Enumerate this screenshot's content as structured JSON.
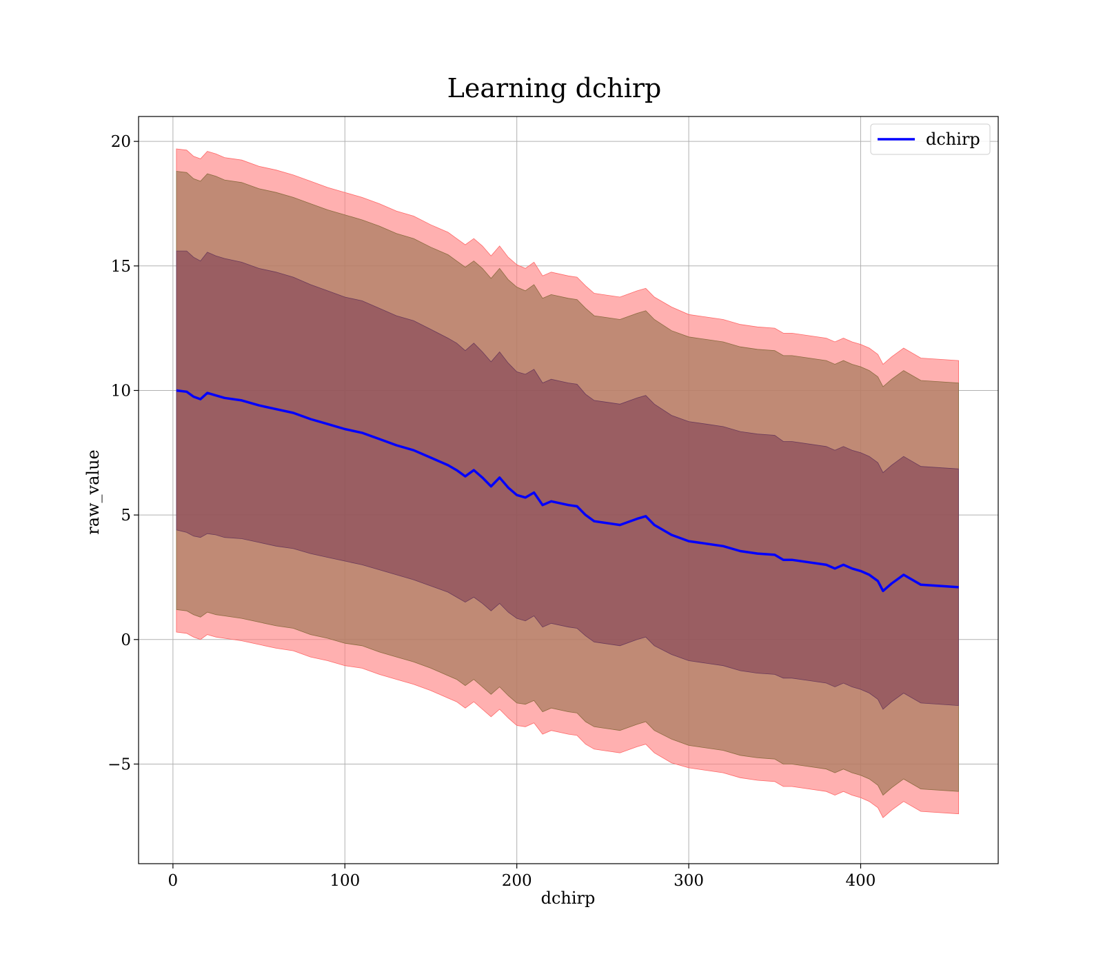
{
  "chart_data": {
    "type": "line",
    "title": "Learning dchirp",
    "xlabel": "dchirp",
    "ylabel": "raw_value",
    "xlim": [
      -20,
      480
    ],
    "ylim": [
      -9,
      21
    ],
    "xticks": [
      0,
      100,
      200,
      300,
      400
    ],
    "yticks": [
      -5,
      0,
      5,
      10,
      15,
      20
    ],
    "xtick_labels": [
      "0",
      "100",
      "200",
      "300",
      "400"
    ],
    "ytick_labels": [
      "−5",
      "0",
      "5",
      "10",
      "15",
      "20"
    ],
    "grid": true,
    "legend": {
      "position": "top-right",
      "entries": [
        "dchirp"
      ]
    },
    "colors": {
      "line": "#0000ff",
      "band_outer": "#ff8080",
      "band_middle": "#a87b5e",
      "band_inner": "#7a3a52"
    },
    "series": [
      {
        "name": "dchirp",
        "x": [
          2,
          8,
          12,
          16,
          20,
          25,
          30,
          40,
          50,
          60,
          70,
          80,
          90,
          100,
          110,
          120,
          130,
          140,
          150,
          160,
          165,
          170,
          175,
          180,
          185,
          190,
          195,
          200,
          205,
          210,
          215,
          220,
          230,
          235,
          240,
          245,
          250,
          260,
          270,
          275,
          280,
          290,
          300,
          310,
          320,
          330,
          340,
          350,
          355,
          360,
          370,
          380,
          385,
          390,
          395,
          400,
          405,
          410,
          413,
          418,
          425,
          435,
          457
        ],
        "y": [
          10.0,
          9.95,
          9.75,
          9.65,
          9.9,
          9.8,
          9.7,
          9.6,
          9.4,
          9.25,
          9.1,
          8.85,
          8.65,
          8.45,
          8.3,
          8.05,
          7.8,
          7.6,
          7.3,
          7.0,
          6.8,
          6.55,
          6.8,
          6.5,
          6.15,
          6.5,
          6.1,
          5.8,
          5.7,
          5.9,
          5.4,
          5.55,
          5.4,
          5.35,
          5.0,
          4.75,
          4.7,
          4.6,
          4.85,
          4.95,
          4.6,
          4.2,
          3.95,
          3.85,
          3.75,
          3.55,
          3.45,
          3.4,
          3.2,
          3.2,
          3.1,
          3.0,
          2.85,
          3.0,
          2.85,
          2.75,
          2.6,
          2.35,
          1.95,
          2.25,
          2.6,
          2.2,
          2.1
        ],
        "band_inner": [
          5.6,
          5.65,
          5.6,
          5.55,
          5.65,
          5.6,
          5.6,
          5.55,
          5.5,
          5.5,
          5.45,
          5.4,
          5.35,
          5.3,
          5.3,
          5.25,
          5.2,
          5.2,
          5.15,
          5.1,
          5.1,
          5.05,
          5.1,
          5.05,
          5.0,
          5.05,
          5.0,
          4.95,
          4.95,
          4.95,
          4.9,
          4.9,
          4.9,
          4.9,
          4.85,
          4.85,
          4.85,
          4.85,
          4.85,
          4.85,
          4.85,
          4.8,
          4.8,
          4.8,
          4.8,
          4.8,
          4.8,
          4.8,
          4.75,
          4.75,
          4.75,
          4.75,
          4.75,
          4.75,
          4.75,
          4.75,
          4.75,
          4.75,
          4.75,
          4.75,
          4.75,
          4.75,
          4.75
        ],
        "band_middle": [
          8.8,
          8.8,
          8.75,
          8.75,
          8.8,
          8.8,
          8.75,
          8.75,
          8.7,
          8.7,
          8.65,
          8.65,
          8.6,
          8.6,
          8.55,
          8.55,
          8.5,
          8.5,
          8.45,
          8.45,
          8.4,
          8.4,
          8.4,
          8.4,
          8.35,
          8.4,
          8.35,
          8.35,
          8.3,
          8.35,
          8.3,
          8.3,
          8.3,
          8.3,
          8.3,
          8.25,
          8.25,
          8.25,
          8.25,
          8.25,
          8.25,
          8.2,
          8.2,
          8.2,
          8.2,
          8.2,
          8.2,
          8.2,
          8.2,
          8.2,
          8.2,
          8.2,
          8.2,
          8.2,
          8.2,
          8.2,
          8.2,
          8.2,
          8.2,
          8.2,
          8.2,
          8.2,
          8.2
        ],
        "band_outer": [
          9.7,
          9.7,
          9.65,
          9.65,
          9.7,
          9.7,
          9.65,
          9.65,
          9.6,
          9.6,
          9.55,
          9.55,
          9.5,
          9.5,
          9.45,
          9.45,
          9.4,
          9.4,
          9.35,
          9.35,
          9.3,
          9.3,
          9.3,
          9.3,
          9.25,
          9.3,
          9.25,
          9.25,
          9.2,
          9.25,
          9.2,
          9.2,
          9.2,
          9.2,
          9.2,
          9.15,
          9.15,
          9.15,
          9.15,
          9.15,
          9.15,
          9.15,
          9.1,
          9.1,
          9.1,
          9.1,
          9.1,
          9.1,
          9.1,
          9.1,
          9.1,
          9.1,
          9.1,
          9.1,
          9.1,
          9.1,
          9.1,
          9.1,
          9.1,
          9.1,
          9.1,
          9.1,
          9.1
        ]
      }
    ]
  }
}
